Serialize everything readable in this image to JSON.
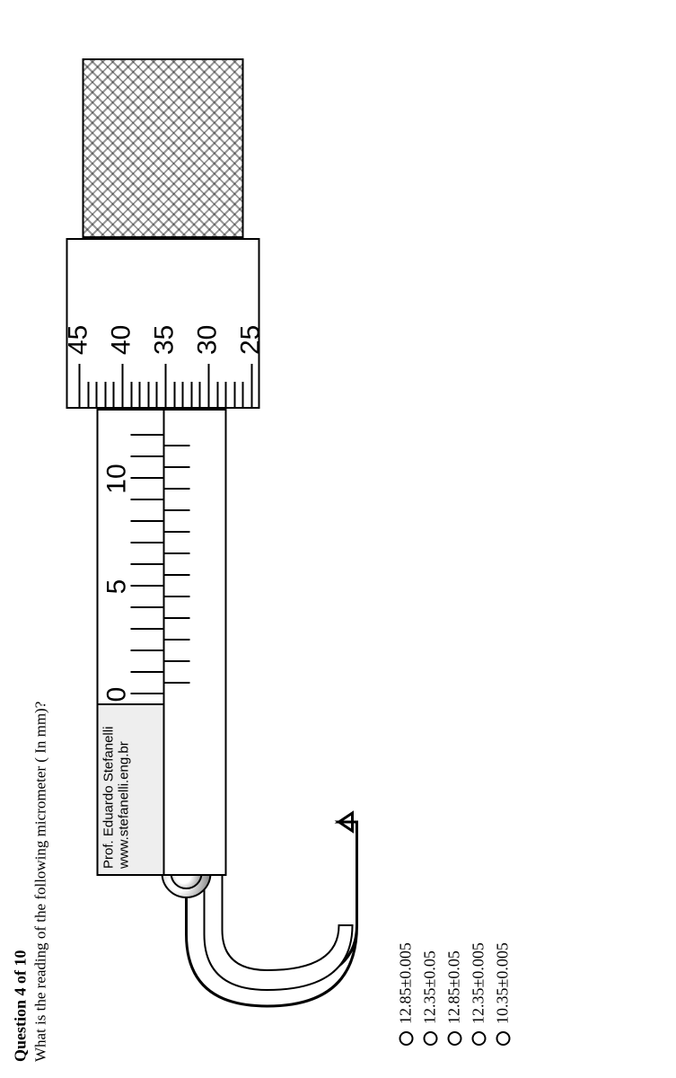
{
  "question": {
    "number_label": "Question 4 of 10",
    "text": "What is the reading of the following micrometer ( In mm)?"
  },
  "micrometer": {
    "author_line1": "Prof. Eduardo Stefanelli",
    "author_line2": "www.stefanelli.eng.br",
    "main_scale": {
      "labels": [
        "0",
        "5",
        "10"
      ],
      "mm_ticks_visible": 13,
      "half_ticks_visible": 12
    },
    "thimble_scale": {
      "labels": [
        "45",
        "40",
        "35",
        "30",
        "25"
      ],
      "minor_divisions": 5
    }
  },
  "options": [
    {
      "label": "12.85±0.005"
    },
    {
      "label": "12.35±0.05"
    },
    {
      "label": "12.85±0.05"
    },
    {
      "label": "12.35±0.005"
    },
    {
      "label": "10.35±0.005"
    }
  ],
  "style": {
    "text_color": "#000000",
    "bg_color": "#ffffff",
    "question_fontsize": 18,
    "option_fontsize": 18,
    "scale_fontsize": 30
  }
}
